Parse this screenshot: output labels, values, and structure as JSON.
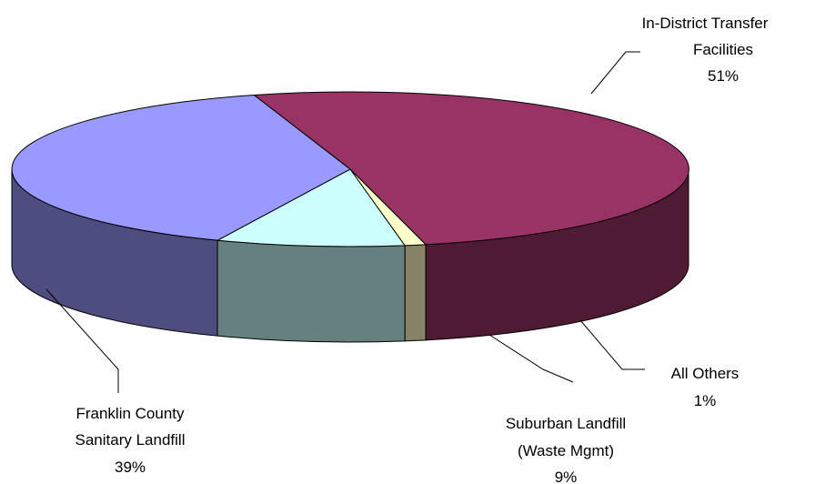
{
  "chart_data": {
    "type": "pie",
    "style": "3d",
    "title": "",
    "slices": [
      {
        "label_lines": [
          "In-District Transfer",
          "Facilities"
        ],
        "value": 51,
        "value_label": "51%",
        "top_color": "#993366",
        "side_color": "#4f1a33"
      },
      {
        "label_lines": [
          "All Others"
        ],
        "value": 1,
        "value_label": "1%",
        "top_color": "#ffffcc",
        "side_color": "#858266"
      },
      {
        "label_lines": [
          "Suburban Landfill",
          "(Waste Mgmt)"
        ],
        "value": 9,
        "value_label": "9%",
        "top_color": "#ccffff",
        "side_color": "#668080"
      },
      {
        "label_lines": [
          "Franklin County",
          "Sanitary Landfill"
        ],
        "value": 39,
        "value_label": "39%",
        "top_color": "#9999ff",
        "side_color": "#4d4d80"
      }
    ]
  }
}
